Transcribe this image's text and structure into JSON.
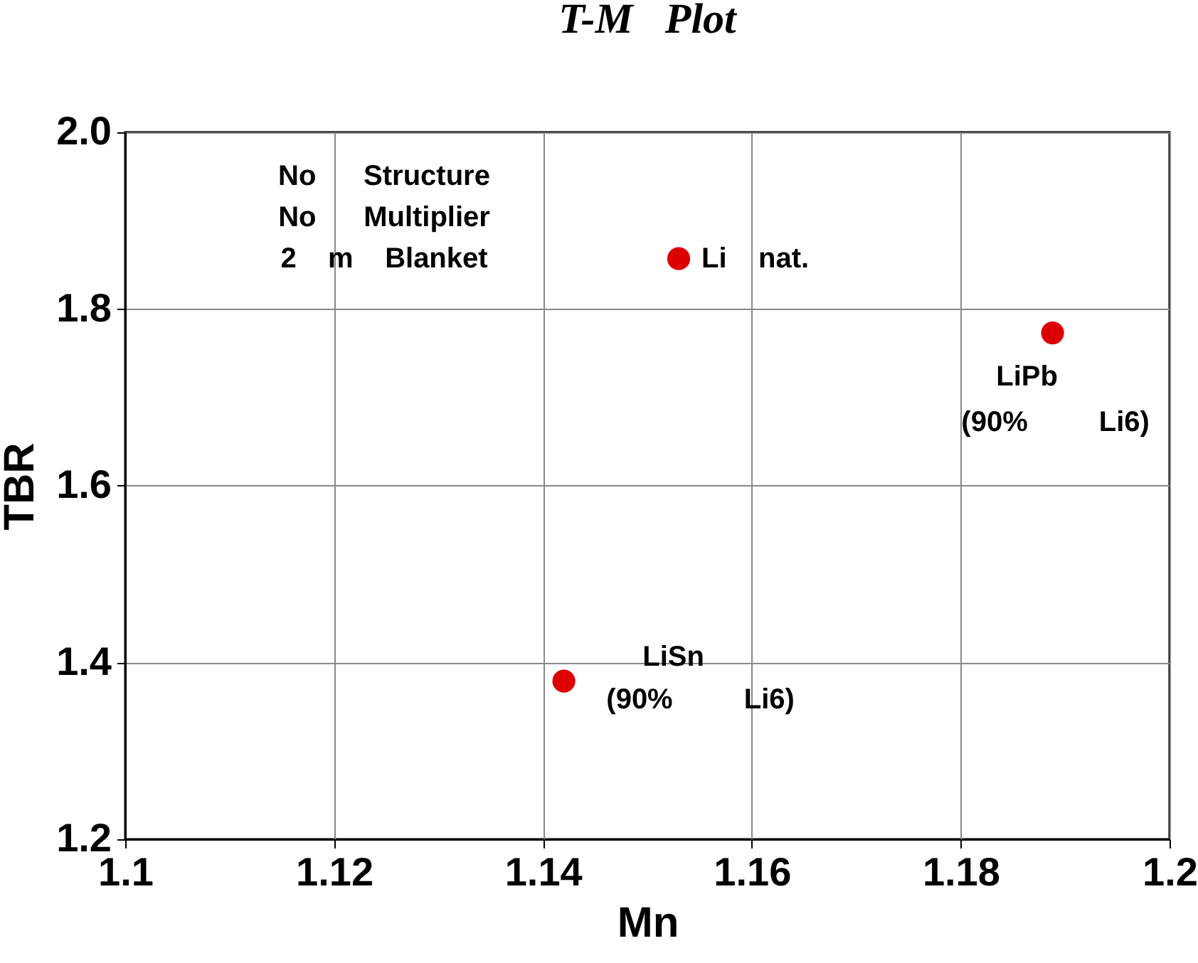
{
  "chart_data": {
    "type": "scatter",
    "title": "T-M   Plot",
    "xlabel": "Mn",
    "ylabel": "TBR",
    "x": [
      1.142,
      1.153,
      1.1888
    ],
    "series": [
      {
        "color": "#dd0000",
        "values": [
          1.379,
          1.857,
          1.773
        ]
      }
    ],
    "xlim": [
      1.1,
      1.2
    ],
    "xticks": [
      1.1,
      1.12,
      1.14,
      1.16,
      1.18,
      1.2
    ],
    "ylim": [
      1.2,
      2.0
    ],
    "yticks": [
      1.2,
      1.4,
      1.6,
      1.8,
      {
        "value": 2,
        "label": "2.0"
      }
    ],
    "grid": true,
    "marker": "circle",
    "annotations": [
      "No      Structure",
      "No      Multiplier",
      "2    m    Blanket",
      {
        "text": "Li    nat.",
        "x": 1.153,
        "y": 1.857
      },
      {
        "text": "LiPb",
        "x": 1.1888,
        "y": 1.773
      },
      {
        "text": "(90%         Li6)",
        "x": 1.1888,
        "y": 1.773
      },
      {
        "text": "LiSn",
        "x": 1.142,
        "y": 1.379
      },
      {
        "text": "(90%         Li6)",
        "x": 1.142,
        "y": 1.379
      }
    ]
  }
}
